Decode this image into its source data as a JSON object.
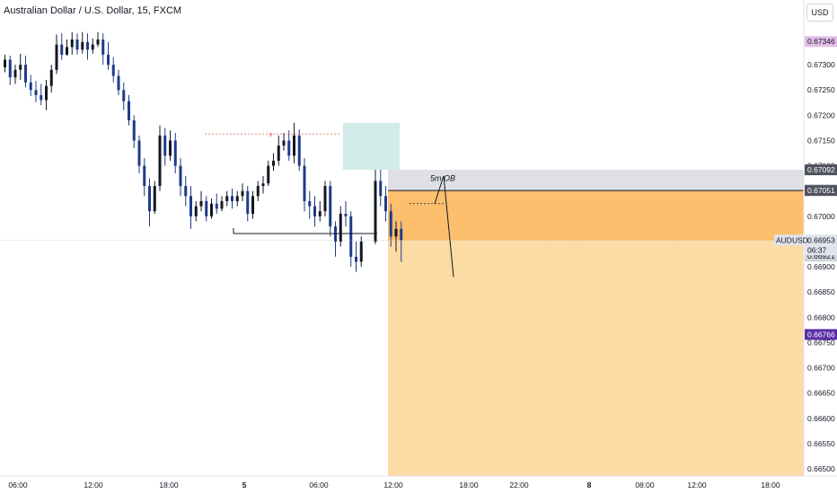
{
  "title": "Australian Dollar / U.S. Dollar, 15, FXCM",
  "currency_button": "USD",
  "chart_data": {
    "type": "candlestick",
    "title": "Australian Dollar / U.S. Dollar, 15, FXCM",
    "symbol": "AUDUSD",
    "ylim": [
      0.665,
      0.6736
    ],
    "y_ticks": [
      "0.67300",
      "0.67250",
      "0.67200",
      "0.67150",
      "0.67100",
      "0.67000",
      "0.66950",
      "0.66900",
      "0.66850",
      "0.66800",
      "0.66750",
      "0.66700",
      "0.66650",
      "0.66600",
      "0.66550",
      "0.66500"
    ],
    "x_ticks": [
      "06:00",
      "12:00",
      "18:00",
      "5",
      "06:00",
      "12:00",
      "18:00",
      "22:00",
      "8",
      "08:00",
      "12:00",
      "18:00"
    ],
    "price_labels": [
      {
        "text": "0.67346",
        "value": 0.67346,
        "color": "#e1bee7",
        "text_color": "#131722"
      },
      {
        "text": "0.67092",
        "value": 0.67092,
        "color": "#50535e",
        "text_color": "#ffffff"
      },
      {
        "text": "0.67053",
        "value": 0.67053,
        "color": "#d1d4dc",
        "text_color": "#131722"
      },
      {
        "text": "0.67051",
        "value": 0.67051,
        "color": "#50535e",
        "text_color": "#ffffff"
      },
      {
        "text": "0.66953",
        "value": 0.66953,
        "color": "#e0e3eb",
        "text_color": "#131722"
      },
      {
        "text": "0.66921",
        "value": 0.66921,
        "color": "#d1d4dc",
        "text_color": "#131722"
      },
      {
        "text": "0.66766",
        "value": 0.66766,
        "color": "#5b2da8",
        "text_color": "#ffffff"
      }
    ],
    "current_price": {
      "symbol": "AUDUSD",
      "price": "0.66953",
      "countdown": "06:37"
    },
    "annotations": {
      "order_block_label": "5m OB",
      "marker_x": "x"
    },
    "colors": {
      "up": "#131722",
      "down": "#1e3a8a",
      "zone_light": "#fddba5",
      "zone_dark": "#fbbf6e",
      "grey_zone": "#d9dbe0",
      "green_zone": "#b2dfdb"
    },
    "candles": [
      {
        "o": 0.67295,
        "h": 0.6732,
        "c": 0.6731,
        "l": 0.67285
      },
      {
        "o": 0.6731,
        "h": 0.67318,
        "c": 0.67275,
        "l": 0.6726
      },
      {
        "o": 0.67275,
        "h": 0.673,
        "c": 0.6729,
        "l": 0.67262
      },
      {
        "o": 0.6729,
        "h": 0.67322,
        "c": 0.673,
        "l": 0.6727
      },
      {
        "o": 0.673,
        "h": 0.67318,
        "c": 0.67265,
        "l": 0.67255
      },
      {
        "o": 0.67265,
        "h": 0.6728,
        "c": 0.6725,
        "l": 0.67238
      },
      {
        "o": 0.6725,
        "h": 0.67268,
        "c": 0.6724,
        "l": 0.67226
      },
      {
        "o": 0.6724,
        "h": 0.67262,
        "c": 0.6723,
        "l": 0.6722
      },
      {
        "o": 0.6723,
        "h": 0.6727,
        "c": 0.67258,
        "l": 0.6721
      },
      {
        "o": 0.67258,
        "h": 0.673,
        "c": 0.6729,
        "l": 0.67245
      },
      {
        "o": 0.6729,
        "h": 0.6736,
        "c": 0.6734,
        "l": 0.67282
      },
      {
        "o": 0.6734,
        "h": 0.67362,
        "c": 0.6732,
        "l": 0.6731
      },
      {
        "o": 0.6732,
        "h": 0.6735,
        "c": 0.67335,
        "l": 0.67318
      },
      {
        "o": 0.67335,
        "h": 0.67365,
        "c": 0.6735,
        "l": 0.6732
      },
      {
        "o": 0.6735,
        "h": 0.67362,
        "c": 0.6733,
        "l": 0.6732
      },
      {
        "o": 0.6733,
        "h": 0.67365,
        "c": 0.67345,
        "l": 0.67322
      },
      {
        "o": 0.67345,
        "h": 0.67362,
        "c": 0.6733,
        "l": 0.6731
      },
      {
        "o": 0.6733,
        "h": 0.67352,
        "c": 0.6734,
        "l": 0.67322
      },
      {
        "o": 0.6734,
        "h": 0.67365,
        "c": 0.6735,
        "l": 0.67335
      },
      {
        "o": 0.6735,
        "h": 0.67362,
        "c": 0.6732,
        "l": 0.673
      },
      {
        "o": 0.6732,
        "h": 0.67345,
        "c": 0.673,
        "l": 0.6729
      },
      {
        "o": 0.673,
        "h": 0.67315,
        "c": 0.67278,
        "l": 0.67265
      },
      {
        "o": 0.67278,
        "h": 0.6729,
        "c": 0.6725,
        "l": 0.6724
      },
      {
        "o": 0.6725,
        "h": 0.67265,
        "c": 0.67228,
        "l": 0.6721
      },
      {
        "o": 0.67228,
        "h": 0.6724,
        "c": 0.6719,
        "l": 0.6718
      },
      {
        "o": 0.6719,
        "h": 0.672,
        "c": 0.6715,
        "l": 0.67135
      },
      {
        "o": 0.6715,
        "h": 0.6716,
        "c": 0.671,
        "l": 0.67085
      },
      {
        "o": 0.671,
        "h": 0.67115,
        "c": 0.6706,
        "l": 0.6704
      },
      {
        "o": 0.6706,
        "h": 0.67075,
        "c": 0.6701,
        "l": 0.6698
      },
      {
        "o": 0.6701,
        "h": 0.6707,
        "c": 0.6706,
        "l": 0.67005
      },
      {
        "o": 0.6706,
        "h": 0.6718,
        "c": 0.6716,
        "l": 0.6705
      },
      {
        "o": 0.6716,
        "h": 0.67175,
        "c": 0.6712,
        "l": 0.671
      },
      {
        "o": 0.6712,
        "h": 0.6717,
        "c": 0.6715,
        "l": 0.6711
      },
      {
        "o": 0.6715,
        "h": 0.67165,
        "c": 0.671,
        "l": 0.67085
      },
      {
        "o": 0.671,
        "h": 0.67115,
        "c": 0.6706,
        "l": 0.6704
      },
      {
        "o": 0.6706,
        "h": 0.6708,
        "c": 0.6704,
        "l": 0.6702
      },
      {
        "o": 0.6704,
        "h": 0.6706,
        "c": 0.67,
        "l": 0.66975
      },
      {
        "o": 0.67,
        "h": 0.6703,
        "c": 0.6702,
        "l": 0.6699
      },
      {
        "o": 0.6702,
        "h": 0.6705,
        "c": 0.6703,
        "l": 0.6701
      },
      {
        "o": 0.6703,
        "h": 0.6704,
        "c": 0.67,
        "l": 0.6699
      },
      {
        "o": 0.67,
        "h": 0.67035,
        "c": 0.67025,
        "l": 0.66995
      },
      {
        "o": 0.67025,
        "h": 0.67045,
        "c": 0.67015,
        "l": 0.67005
      },
      {
        "o": 0.67015,
        "h": 0.6704,
        "c": 0.6703,
        "l": 0.6701
      },
      {
        "o": 0.6703,
        "h": 0.6705,
        "c": 0.6704,
        "l": 0.6702
      },
      {
        "o": 0.6704,
        "h": 0.67055,
        "c": 0.6703,
        "l": 0.67015
      },
      {
        "o": 0.6703,
        "h": 0.6705,
        "c": 0.6704,
        "l": 0.6702
      },
      {
        "o": 0.6704,
        "h": 0.67065,
        "c": 0.6705,
        "l": 0.6703
      },
      {
        "o": 0.6705,
        "h": 0.6706,
        "c": 0.67005,
        "l": 0.6699
      },
      {
        "o": 0.67005,
        "h": 0.6705,
        "c": 0.6704,
        "l": 0.66995
      },
      {
        "o": 0.6704,
        "h": 0.6707,
        "c": 0.6706,
        "l": 0.6703
      },
      {
        "o": 0.6706,
        "h": 0.6708,
        "c": 0.67065,
        "l": 0.67045
      },
      {
        "o": 0.67065,
        "h": 0.6711,
        "c": 0.671,
        "l": 0.6706
      },
      {
        "o": 0.671,
        "h": 0.67125,
        "c": 0.6711,
        "l": 0.6709
      },
      {
        "o": 0.6711,
        "h": 0.6716,
        "c": 0.6714,
        "l": 0.671
      },
      {
        "o": 0.6714,
        "h": 0.67165,
        "c": 0.6715,
        "l": 0.6713
      },
      {
        "o": 0.6715,
        "h": 0.6717,
        "c": 0.6712,
        "l": 0.6711
      },
      {
        "o": 0.6712,
        "h": 0.67185,
        "c": 0.6716,
        "l": 0.67105
      },
      {
        "o": 0.6716,
        "h": 0.67172,
        "c": 0.671,
        "l": 0.6709
      },
      {
        "o": 0.671,
        "h": 0.67115,
        "c": 0.6703,
        "l": 0.6701
      },
      {
        "o": 0.6703,
        "h": 0.6705,
        "c": 0.6702,
        "l": 0.66995
      },
      {
        "o": 0.6702,
        "h": 0.6704,
        "c": 0.67,
        "l": 0.6698
      },
      {
        "o": 0.67,
        "h": 0.6703,
        "c": 0.6701,
        "l": 0.6699
      },
      {
        "o": 0.6701,
        "h": 0.6707,
        "c": 0.6706,
        "l": 0.67
      },
      {
        "o": 0.6706,
        "h": 0.6707,
        "c": 0.6698,
        "l": 0.6696
      },
      {
        "o": 0.6698,
        "h": 0.6699,
        "c": 0.6695,
        "l": 0.6692
      },
      {
        "o": 0.6695,
        "h": 0.6702,
        "c": 0.67005,
        "l": 0.6694
      },
      {
        "o": 0.67005,
        "h": 0.6703,
        "c": 0.67,
        "l": 0.6698
      },
      {
        "o": 0.67,
        "h": 0.6701,
        "c": 0.6692,
        "l": 0.669
      },
      {
        "o": 0.6692,
        "h": 0.6695,
        "c": 0.6691,
        "l": 0.6689
      },
      {
        "o": 0.6691,
        "h": 0.6696,
        "c": 0.6695,
        "l": 0.669
      },
      {
        "o": 0.6695,
        "h": 0.67092,
        "c": 0.6707,
        "l": 0.66945
      },
      {
        "o": 0.6707,
        "h": 0.67092,
        "c": 0.6704,
        "l": 0.6702
      },
      {
        "o": 0.6704,
        "h": 0.6706,
        "c": 0.6701,
        "l": 0.6699
      },
      {
        "o": 0.6701,
        "h": 0.67025,
        "c": 0.6696,
        "l": 0.6694
      },
      {
        "o": 0.6696,
        "h": 0.6699,
        "c": 0.66975,
        "l": 0.6693
      },
      {
        "o": 0.66975,
        "h": 0.6699,
        "c": 0.66953,
        "l": 0.6691
      }
    ]
  }
}
